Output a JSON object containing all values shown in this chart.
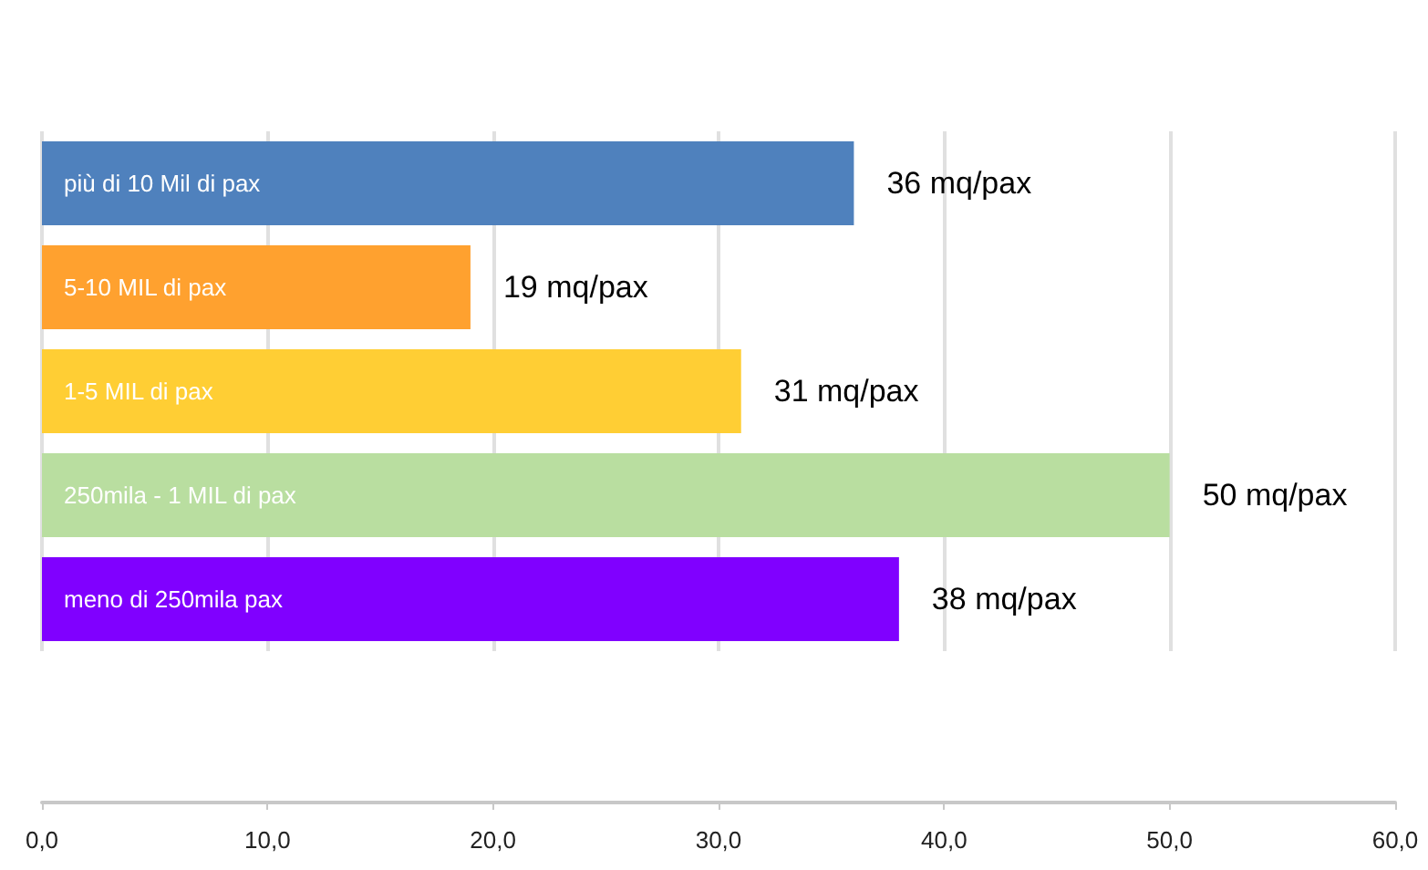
{
  "chart_data": {
    "type": "bar",
    "orientation": "horizontal",
    "categories": [
      "più di 10 Mil di pax",
      "5-10 MIL di pax",
      "1-5 MIL di pax",
      "250mila - 1 MIL di pax",
      "meno di 250mila pax"
    ],
    "values": [
      36,
      19,
      31,
      50,
      38
    ],
    "colors": [
      "#4f81bd",
      "#ffa12f",
      "#ffce34",
      "#b9dea0",
      "#8000ff"
    ],
    "value_labels": [
      "36 mq/pax",
      "19 mq/pax",
      "31 mq/pax",
      "50 mq/pax",
      "38 mq/pax"
    ],
    "xlim": [
      0,
      60
    ],
    "xticks": [
      {
        "value": 0,
        "label": "0,0"
      },
      {
        "value": 10,
        "label": "10,0"
      },
      {
        "value": 20,
        "label": "20,0"
      },
      {
        "value": 30,
        "label": "30,0"
      },
      {
        "value": 40,
        "label": "40,0"
      },
      {
        "value": 50,
        "label": "50,0"
      },
      {
        "value": 60,
        "label": "60,0"
      }
    ],
    "grid": "x"
  }
}
